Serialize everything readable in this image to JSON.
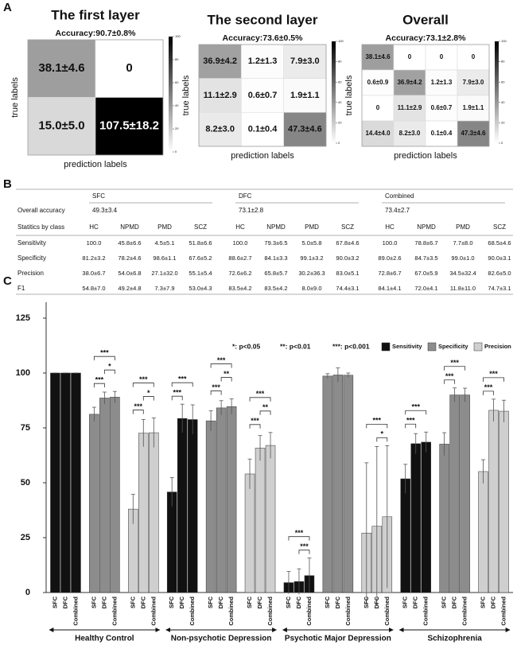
{
  "panels": [
    "A",
    "B",
    "C"
  ],
  "chart_data": [
    {
      "type": "heatmap",
      "title": "The first layer",
      "subtitle": "Accuracy:90.7±0.8%",
      "x_label": "prediction labels",
      "y_label": "true labels",
      "colorlim": [
        0,
        100
      ],
      "colorbar_ticks": [
        0,
        20,
        40,
        60,
        80,
        100
      ],
      "values": [
        [
          38.1,
          0
        ],
        [
          15.0,
          107.5
        ]
      ],
      "value_labels": [
        [
          "38.1±4.6",
          "0"
        ],
        [
          "15.0±5.0",
          "107.5±18.2"
        ]
      ]
    },
    {
      "type": "heatmap",
      "title": "The second layer",
      "subtitle": "Accuracy:73.6±0.5%",
      "x_label": "prediction labels",
      "y_label": "true labels",
      "colorlim": [
        0,
        100
      ],
      "colorbar_ticks": [
        0,
        20,
        40,
        60,
        80,
        100
      ],
      "values": [
        [
          36.9,
          1.2,
          7.9
        ],
        [
          11.1,
          0.6,
          1.9
        ],
        [
          8.2,
          0.1,
          47.3
        ]
      ],
      "value_labels": [
        [
          "36.9±4.2",
          "1.2±1.3",
          "7.9±3.0"
        ],
        [
          "11.1±2.9",
          "0.6±0.7",
          "1.9±1.1"
        ],
        [
          "8.2±3.0",
          "0.1±0.4",
          "47.3±4.6"
        ]
      ]
    },
    {
      "type": "heatmap",
      "title": "Overall",
      "subtitle": "Accuracy:73.1±2.8%",
      "x_label": "prediction labels",
      "y_label": "true labels",
      "colorlim": [
        0,
        100
      ],
      "colorbar_ticks": [
        0,
        20,
        40,
        60,
        80,
        100
      ],
      "values": [
        [
          38.1,
          0,
          0,
          0
        ],
        [
          0.6,
          36.9,
          1.2,
          7.9
        ],
        [
          0,
          11.1,
          0.6,
          1.9
        ],
        [
          14.4,
          8.2,
          0.1,
          47.3
        ]
      ],
      "value_labels": [
        [
          "38.1±4.6",
          "0",
          "0",
          "0"
        ],
        [
          "0.6±0.9",
          "36.9±4.2",
          "1.2±1.3",
          "7.9±3.0"
        ],
        [
          "0",
          "11.1±2.9",
          "0.6±0.7",
          "1.9±1.1"
        ],
        [
          "14.4±4.0",
          "8.2±3.0",
          "0.1±0.4",
          "47.3±4.6"
        ]
      ]
    },
    {
      "type": "grouped_bar",
      "groups": [
        "Healthy Control",
        "Non-psychotic Depression",
        "Psychotic Major Depression",
        "Schizophrenia"
      ],
      "methods": [
        "SFC",
        "DFC",
        "Combined"
      ],
      "ylim": [
        0,
        125
      ],
      "yticks": [
        0,
        25,
        50,
        75,
        100,
        125
      ],
      "significance_legend": [
        "*: p<0.05",
        "**: p<0.01",
        "***: p<0.001"
      ],
      "series": [
        {
          "name": "Sensitivity",
          "color": "#111111",
          "values": [
            [
              100,
              100,
              100
            ],
            [
              45.8,
              79.3,
              78.8
            ],
            [
              4.5,
              5.0,
              7.7
            ],
            [
              51.8,
              67.8,
              68.5
            ]
          ],
          "errors": [
            [
              0,
              0,
              0
            ],
            [
              6.6,
              6.5,
              6.7
            ],
            [
              5.1,
              5.8,
              8.0
            ],
            [
              6.6,
              4.6,
              4.6
            ]
          ],
          "significance": [
            [],
            [
              {
                "pair": [
                  "SFC",
                  "DFC"
                ],
                "label": "***"
              },
              {
                "pair": [
                  "SFC",
                  "Combined"
                ],
                "label": "***"
              }
            ],
            [
              {
                "pair": [
                  "DFC",
                  "Combined"
                ],
                "label": "***"
              },
              {
                "pair": [
                  "SFC",
                  "Combined"
                ],
                "label": "***"
              }
            ],
            [
              {
                "pair": [
                  "SFC",
                  "DFC"
                ],
                "label": "***"
              },
              {
                "pair": [
                  "SFC",
                  "Combined"
                ],
                "label": "***"
              }
            ]
          ]
        },
        {
          "name": "Specificity",
          "color": "#8c8c8c",
          "values": [
            [
              81.2,
              88.6,
              89.0
            ],
            [
              78.2,
              84.1,
              84.7
            ],
            [
              98.6,
              99.1,
              99.0
            ],
            [
              67.6,
              90.0,
              90.0
            ]
          ],
          "errors": [
            [
              3.2,
              2.7,
              2.6
            ],
            [
              4.6,
              3.3,
              3.5
            ],
            [
              1.1,
              3.2,
              1.0
            ],
            [
              5.2,
              3.2,
              3.1
            ]
          ],
          "significance": [
            [
              {
                "pair": [
                  "SFC",
                  "DFC"
                ],
                "label": "***"
              },
              {
                "pair": [
                  "DFC",
                  "Combined"
                ],
                "label": "*"
              },
              {
                "pair": [
                  "SFC",
                  "Combined"
                ],
                "label": "***"
              }
            ],
            [
              {
                "pair": [
                  "SFC",
                  "DFC"
                ],
                "label": "***"
              },
              {
                "pair": [
                  "DFC",
                  "Combined"
                ],
                "label": "**"
              },
              {
                "pair": [
                  "SFC",
                  "Combined"
                ],
                "label": "***"
              }
            ],
            [],
            [
              {
                "pair": [
                  "SFC",
                  "DFC"
                ],
                "label": "***"
              },
              {
                "pair": [
                  "SFC",
                  "Combined"
                ],
                "label": "***"
              }
            ]
          ]
        },
        {
          "name": "Precision",
          "color": "#cfcfcf",
          "values": [
            [
              38.0,
              72.6,
              72.8
            ],
            [
              54.0,
              65.8,
              67.0
            ],
            [
              27.1,
              30.2,
              34.5
            ],
            [
              55.1,
              83.0,
              82.6
            ]
          ],
          "errors": [
            [
              6.7,
              6.2,
              6.7
            ],
            [
              6.8,
              5.7,
              5.9
            ],
            [
              32.0,
              36.3,
              32.4
            ],
            [
              5.4,
              5.1,
              5.0
            ]
          ],
          "significance": [
            [
              {
                "pair": [
                  "SFC",
                  "DFC"
                ],
                "label": "***"
              },
              {
                "pair": [
                  "DFC",
                  "Combined"
                ],
                "label": "*"
              },
              {
                "pair": [
                  "SFC",
                  "Combined"
                ],
                "label": "***"
              }
            ],
            [
              {
                "pair": [
                  "SFC",
                  "DFC"
                ],
                "label": "***"
              },
              {
                "pair": [
                  "DFC",
                  "Combined"
                ],
                "label": "**"
              },
              {
                "pair": [
                  "SFC",
                  "Combined"
                ],
                "label": "***"
              }
            ],
            [
              {
                "pair": [
                  "DFC",
                  "Combined"
                ],
                "label": "*"
              },
              {
                "pair": [
                  "SFC",
                  "Combined"
                ],
                "label": "***"
              }
            ],
            [
              {
                "pair": [
                  "SFC",
                  "DFC"
                ],
                "label": "***"
              },
              {
                "pair": [
                  "SFC",
                  "Combined"
                ],
                "label": "***"
              }
            ]
          ]
        }
      ]
    }
  ],
  "table": {
    "groups": [
      "SFC",
      "DFC",
      "Combined"
    ],
    "overall_label": "Overall accuracy",
    "overall": [
      "49.3±3.4",
      "73.1±2.8",
      "73.4±2.7"
    ],
    "class_label": "Statitics by class",
    "classes": [
      "HC",
      "NPMD",
      "PMD",
      "SCZ"
    ],
    "rows": [
      {
        "label": "Sensitivity",
        "cells": [
          "100.0",
          "45.8±6.6",
          "4.5±5.1",
          "51.8±6.6",
          "100.0",
          "79.3±6.5",
          "5.0±5.8",
          "67.8±4.6",
          "100.0",
          "78.8±6.7",
          "7.7±8.0",
          "68.5±4.6"
        ]
      },
      {
        "label": "Specificity",
        "cells": [
          "81.2±3.2",
          "78.2±4.6",
          "98.6±1.1",
          "67.6±5.2",
          "88.6±2.7",
          "84.1±3.3",
          "99.1±3.2",
          "90.0±3.2",
          "89.0±2.6",
          "84.7±3.5",
          "99.0±1.0",
          "90.0±3.1"
        ]
      },
      {
        "label": "Precision",
        "cells": [
          "38.0±6.7",
          "54.0±6.8",
          "27.1±32.0",
          "55.1±5.4",
          "72.6±6.2",
          "65.8±5.7",
          "30.2±36.3",
          "83.0±5.1",
          "72.8±6.7",
          "67.0±5.9",
          "34.5±32.4",
          "82.6±5.0"
        ]
      },
      {
        "label": "F1",
        "cells": [
          "54.8±7.0",
          "49.2±4.8",
          "7.3±7.9",
          "53.0±4.3",
          "83.5±4.2",
          "83.5±4.2",
          "8.0±9.0",
          "74.4±3.1",
          "84.1±4.1",
          "72.0±4.1",
          "11.8±11.0",
          "74.7±3.1"
        ]
      }
    ]
  }
}
